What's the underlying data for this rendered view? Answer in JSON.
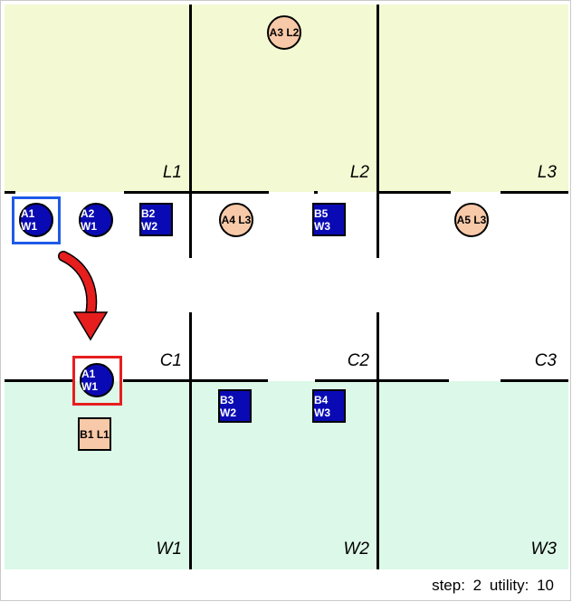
{
  "cells": {
    "L1": "L1",
    "L2": "L2",
    "L3": "L3",
    "C1": "C1",
    "C2": "C2",
    "C3": "C3",
    "W1": "W1",
    "W2": "W2",
    "W3": "W3"
  },
  "pieces": {
    "A3": "A3 L2",
    "A1": "A1 W1",
    "A2": "A2 W1",
    "B2": "B2 W2",
    "A4": "A4 L3",
    "B5": "B5 W3",
    "A5": "A5 L3",
    "A1_target": "A1 W1",
    "B1": "B1 L1",
    "B3": "B3 W2",
    "B4": "B4 W3"
  },
  "status": {
    "step_label": "step:",
    "step_value": "2",
    "utility_label": "utility:",
    "utility_value": "10"
  },
  "colors": {
    "agent_blue": "#0a0ab4",
    "light_piece": "#f8c9a8",
    "light_zone": "#f3f9d2",
    "water_zone": "#dcf8e9",
    "selection_blue": "#1e5ae6",
    "selection_red": "#e61e1e",
    "move_arrow": "#e61e1e"
  },
  "icons": {
    "move_arrow": "curved-arrow-down-icon"
  }
}
